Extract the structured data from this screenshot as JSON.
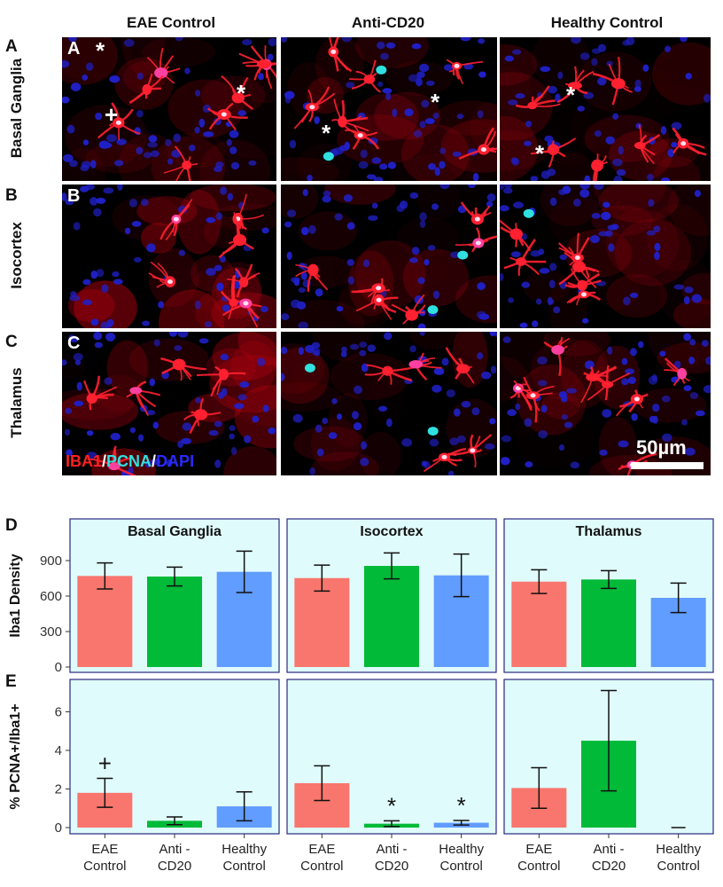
{
  "columns": [
    "EAE Control",
    "Anti-CD20",
    "Healthy Control"
  ],
  "rows": [
    {
      "letter": "A",
      "label": "Basal Ganglia"
    },
    {
      "letter": "B",
      "label": "Isocortex"
    },
    {
      "letter": "C",
      "label": "Thalamus"
    }
  ],
  "inset_letters": [
    "A",
    "B",
    "C"
  ],
  "markers": {
    "asterisk": "*",
    "plus": "+"
  },
  "legend": {
    "iba1": "IBA1",
    "sep1": "/",
    "pcna": "PCNA",
    "sep2": "/",
    "dapi": "DAPI"
  },
  "legend_colors": {
    "iba1": "#ff2020",
    "sep": "#ffffff",
    "pcna": "#30e0e0",
    "dapi": "#2a2aff"
  },
  "scale_bar": "50µm",
  "chart_letters": [
    "D",
    "E"
  ],
  "chart_data": [
    {
      "type": "bar",
      "ylabel": "Iba1 Density",
      "ylim": [
        0,
        1050
      ],
      "yticks": [
        0,
        300,
        600,
        900
      ],
      "panels": [
        "Basal Ganglia",
        "Isocortex",
        "Thalamus"
      ],
      "categories": [
        "EAE Control",
        "Anti-CD20",
        "Healthy Control"
      ],
      "colors": [
        "#f8766d",
        "#00ba38",
        "#619cff"
      ],
      "values": [
        [
          770,
          765,
          805
        ],
        [
          752,
          855,
          775
        ],
        [
          722,
          740,
          585
        ]
      ],
      "errors": [
        [
          110,
          80,
          175
        ],
        [
          110,
          110,
          180
        ],
        [
          100,
          75,
          125
        ]
      ]
    },
    {
      "type": "bar",
      "ylabel": "% PCNA+/Iba1+",
      "ylim": [
        0,
        7.4
      ],
      "yticks": [
        0,
        2,
        4,
        6
      ],
      "panels": [
        "Basal Ganglia",
        "Isocortex",
        "Thalamus"
      ],
      "categories": [
        "EAE\nControl",
        "Anti -\nCD20",
        "Healthy\nControl"
      ],
      "colors": [
        "#f8766d",
        "#00ba38",
        "#619cff"
      ],
      "values": [
        [
          1.8,
          0.35,
          1.1
        ],
        [
          2.3,
          0.2,
          0.25
        ],
        [
          2.05,
          4.5,
          0
        ]
      ],
      "errors": [
        [
          0.75,
          0.2,
          0.75
        ],
        [
          0.9,
          0.15,
          0.12
        ],
        [
          1.05,
          2.6,
          0
        ]
      ],
      "annotations": [
        [
          [
            "+"
          ],
          [],
          []
        ],
        [
          [],
          [
            "*"
          ],
          [
            "*"
          ]
        ],
        [
          [],
          [],
          []
        ]
      ]
    }
  ]
}
